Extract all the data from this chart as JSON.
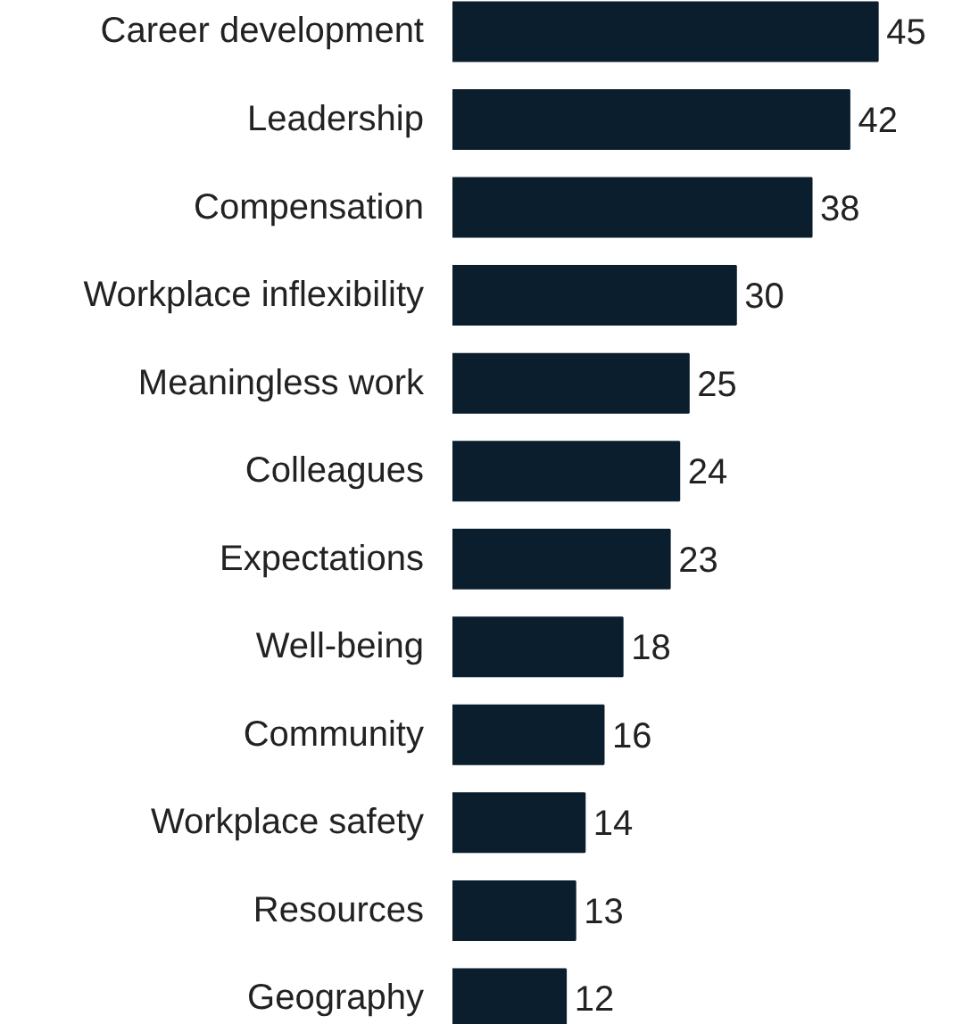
{
  "chart_data": {
    "type": "bar",
    "orientation": "horizontal",
    "categories": [
      "Career development",
      "Leadership",
      "Compensation",
      "Workplace inflexibility",
      "Meaningless work",
      "Colleagues",
      "Expectations",
      "Well-being",
      "Community",
      "Workplace safety",
      "Resources",
      "Geography"
    ],
    "values": [
      45,
      42,
      38,
      30,
      25,
      24,
      23,
      18,
      16,
      14,
      13,
      12
    ],
    "color": "#0b1e2e",
    "data_labels": true
  }
}
